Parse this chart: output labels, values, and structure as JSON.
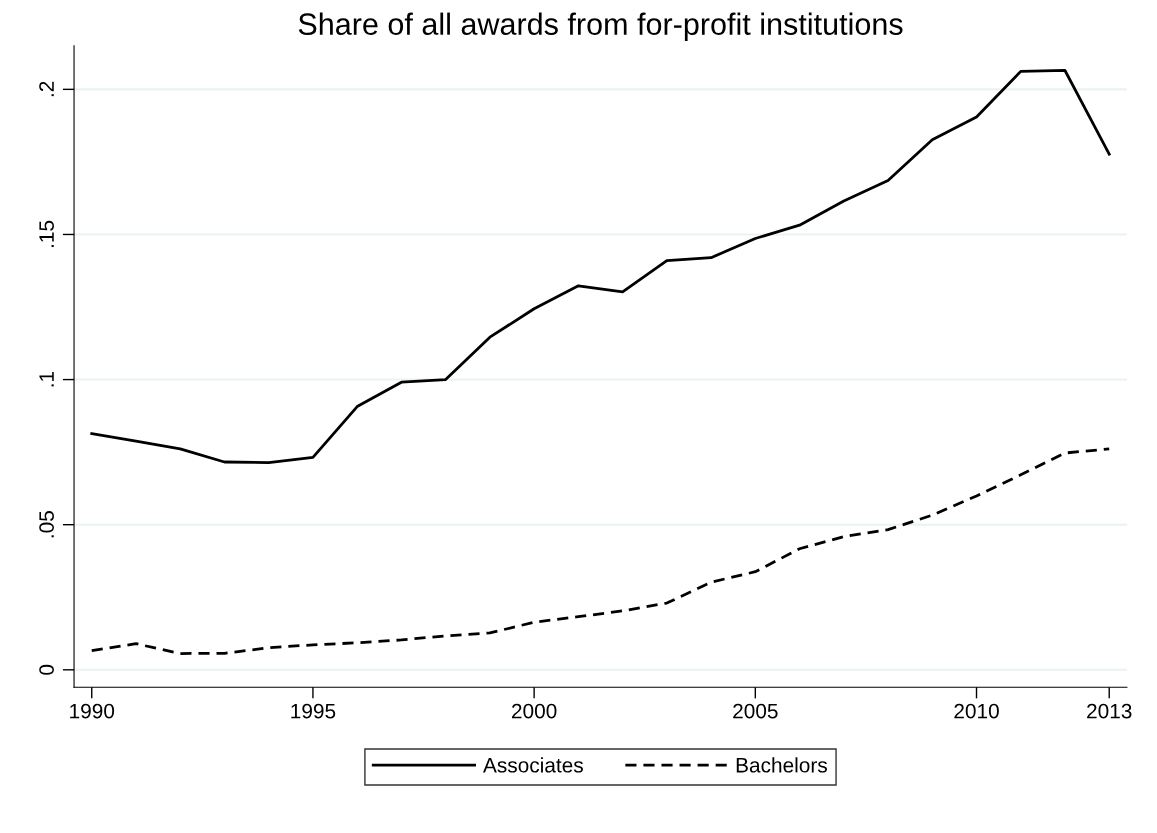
{
  "chart_data": {
    "type": "line",
    "title": "Share of all awards from for-profit institutions",
    "x": [
      1990,
      1991,
      1992,
      1993,
      1994,
      1995,
      1996,
      1997,
      1998,
      1999,
      2000,
      2001,
      2002,
      2003,
      2004,
      2005,
      2006,
      2007,
      2008,
      2009,
      2010,
      2011,
      2012,
      2013
    ],
    "series": [
      {
        "name": "Associates",
        "color": "#000000",
        "line_style": "solid",
        "values": [
          0.0814,
          0.0788,
          0.0761,
          0.0716,
          0.0714,
          0.0732,
          0.0907,
          0.0991,
          0.1,
          0.1146,
          0.1244,
          0.1323,
          0.1302,
          0.141,
          0.142,
          0.1486,
          0.1532,
          0.1615,
          0.1686,
          0.1826,
          0.1905,
          0.2062,
          0.2065,
          0.1777
        ]
      },
      {
        "name": "Bachelors",
        "color": "#000000",
        "line_style": "dashed",
        "values": [
          0.0066,
          0.009,
          0.0056,
          0.0057,
          0.0076,
          0.0086,
          0.0093,
          0.0103,
          0.0117,
          0.0127,
          0.0164,
          0.0183,
          0.0203,
          0.023,
          0.0302,
          0.0338,
          0.0417,
          0.0459,
          0.0483,
          0.0533,
          0.0599,
          0.0672,
          0.0747,
          0.0761
        ]
      }
    ],
    "xlim": [
      1989.6,
      2013.4
    ],
    "ylim": [
      -0.006,
      0.215
    ],
    "xticks": [
      1990,
      1995,
      2000,
      2005,
      2010,
      2013
    ],
    "yticks": [
      {
        "value": 0,
        "label": "0"
      },
      {
        "value": 0.05,
        "label": ".05"
      },
      {
        "value": 0.1,
        "label": ".1"
      },
      {
        "value": 0.15,
        "label": ".15"
      },
      {
        "value": 0.2,
        "label": ".2"
      }
    ],
    "grid": "y",
    "legend": "bottom",
    "marker": "none"
  }
}
